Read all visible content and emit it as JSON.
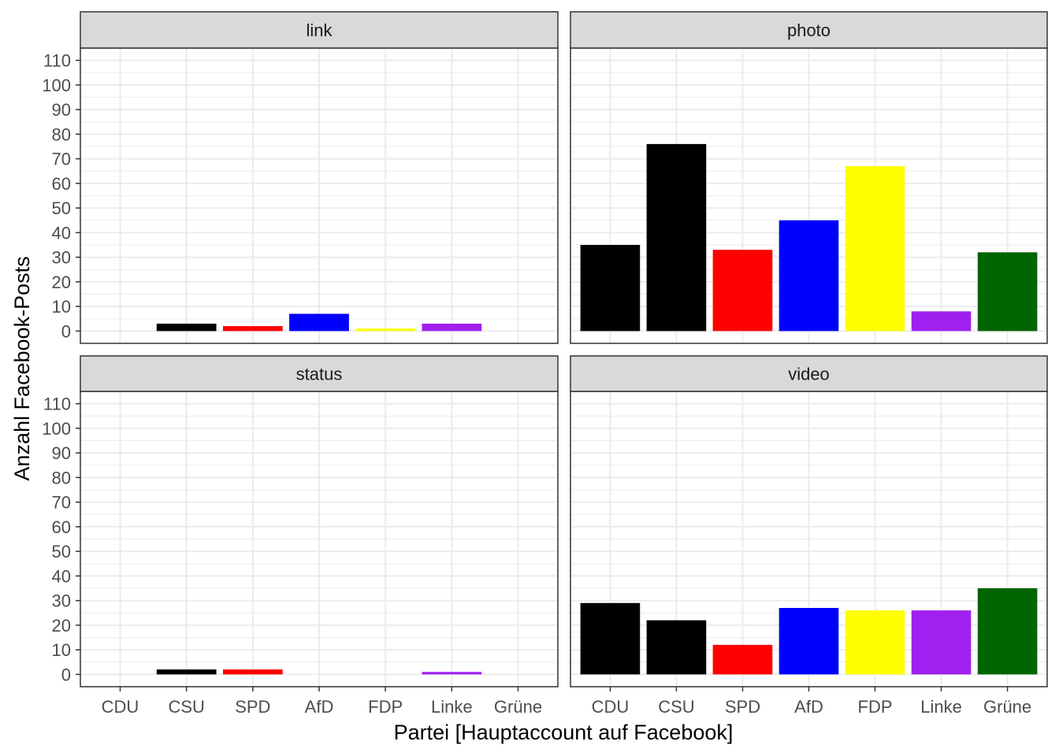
{
  "chart_data": {
    "type": "bar",
    "layout": "facet-2x2",
    "xlabel": "Partei [Hauptaccount auf Facebook]",
    "ylabel": "Anzahl Facebook-Posts",
    "categories": [
      "CDU",
      "CSU",
      "SPD",
      "AfD",
      "FDP",
      "Linke",
      "Grüne"
    ],
    "category_colors": [
      "#000000",
      "#000000",
      "#ff0000",
      "#0000ff",
      "#ffff00",
      "#a020f0",
      "#006400"
    ],
    "ylim": [
      -5,
      115
    ],
    "yticks": [
      0,
      10,
      20,
      30,
      40,
      50,
      60,
      70,
      80,
      90,
      100,
      110
    ],
    "grid": true,
    "facets": [
      {
        "name": "link",
        "values": [
          0,
          3,
          2,
          7,
          1,
          3,
          0
        ]
      },
      {
        "name": "photo",
        "values": [
          35,
          76,
          33,
          45,
          67,
          8,
          32
        ]
      },
      {
        "name": "status",
        "values": [
          0,
          2,
          2,
          0,
          0,
          1,
          0
        ]
      },
      {
        "name": "video",
        "values": [
          29,
          22,
          12,
          27,
          26,
          26,
          35
        ]
      }
    ]
  }
}
